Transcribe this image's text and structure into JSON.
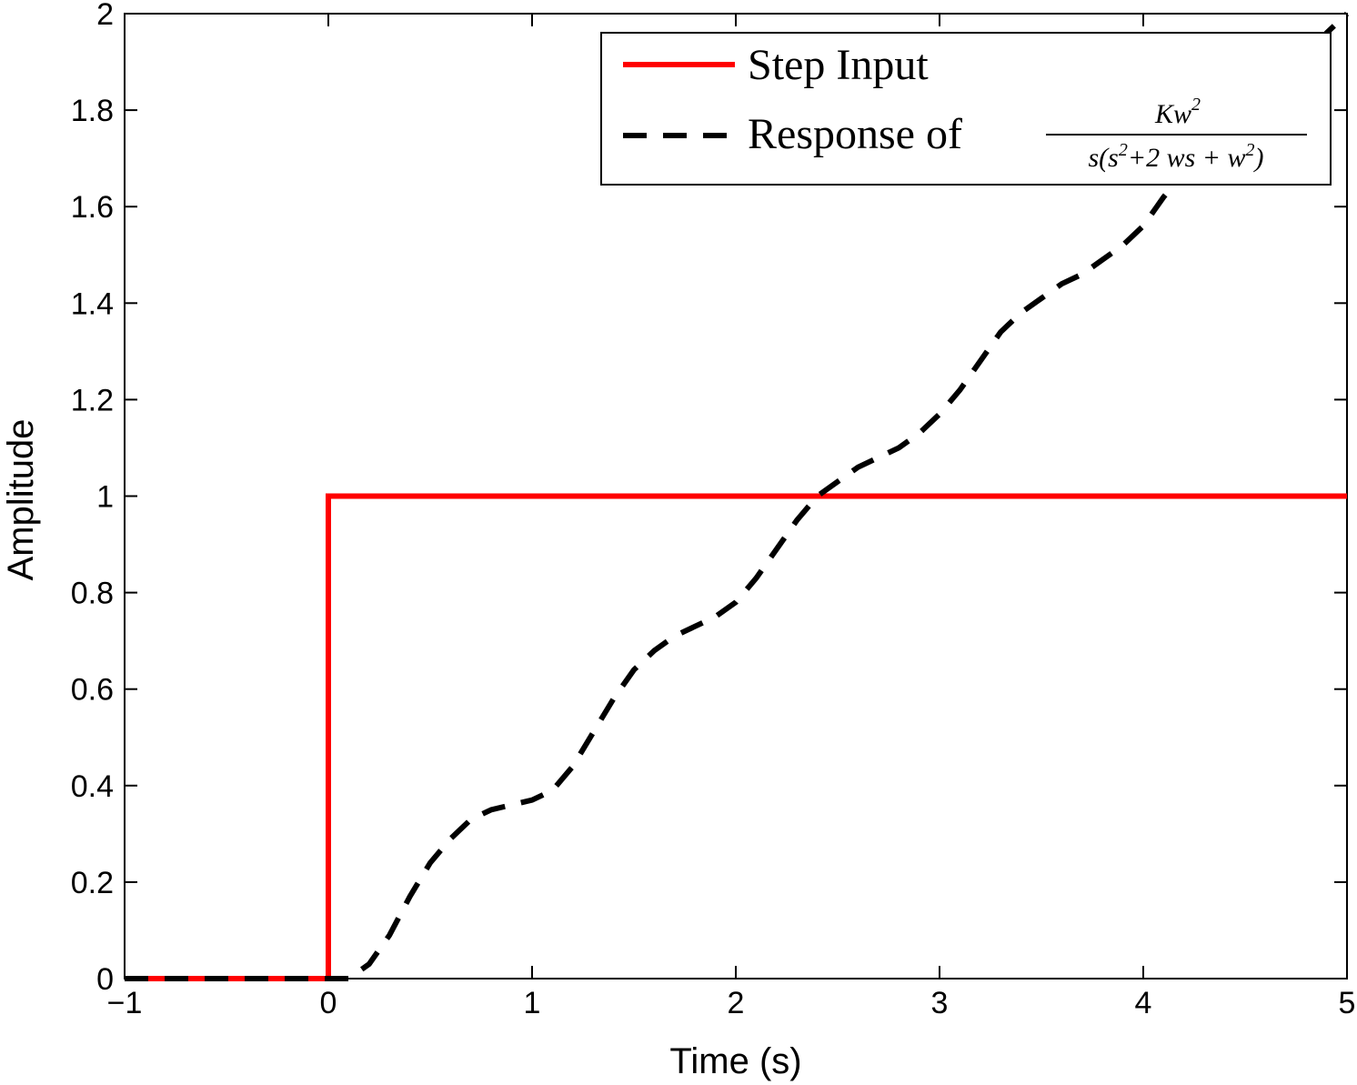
{
  "chart_data": {
    "type": "line",
    "xlabel": "Time (s)",
    "ylabel": "Amplitude",
    "xlim": [
      -1,
      5
    ],
    "ylim": [
      0,
      2
    ],
    "xticks": [
      "−1",
      "0",
      "1",
      "2",
      "3",
      "4",
      "5"
    ],
    "yticks": [
      "0",
      "0.2",
      "0.4",
      "0.6",
      "0.8",
      "1",
      "1.2",
      "1.4",
      "1.6",
      "1.8",
      "2"
    ],
    "grid": false,
    "legend_position": "top-right",
    "legend": {
      "step_label": "Step Input",
      "response_prefix": "Response of",
      "fraction_numerator": "Kw2",
      "fraction_denominator": "s(s2+2ws+w2)"
    },
    "series": [
      {
        "name": "Step Input",
        "color": "#ff0000",
        "style": "solid",
        "x": [
          -1,
          0,
          0,
          5
        ],
        "y": [
          0,
          0,
          1,
          1
        ]
      },
      {
        "name": "Response",
        "color": "#000000",
        "style": "dashed",
        "x": [
          -1,
          0,
          0.1,
          0.2,
          0.3,
          0.4,
          0.5,
          0.6,
          0.7,
          0.8,
          0.9,
          1.0,
          1.1,
          1.2,
          1.3,
          1.4,
          1.5,
          1.6,
          1.7,
          1.8,
          1.9,
          2.0,
          2.1,
          2.2,
          2.3,
          2.4,
          2.5,
          2.6,
          2.7,
          2.8,
          2.9,
          3.0,
          3.1,
          3.2,
          3.3,
          3.4,
          3.5,
          3.6,
          3.7,
          3.8,
          3.9,
          4.0,
          4.1,
          4.2,
          4.3,
          4.4,
          4.5,
          4.6,
          4.7,
          4.8,
          4.9,
          5.0
        ],
        "y": [
          0,
          0,
          0.0,
          0.03,
          0.09,
          0.17,
          0.24,
          0.29,
          0.33,
          0.35,
          0.36,
          0.37,
          0.39,
          0.44,
          0.51,
          0.58,
          0.64,
          0.68,
          0.71,
          0.73,
          0.75,
          0.78,
          0.83,
          0.89,
          0.95,
          1.0,
          1.03,
          1.06,
          1.08,
          1.1,
          1.13,
          1.17,
          1.22,
          1.28,
          1.34,
          1.38,
          1.41,
          1.44,
          1.46,
          1.49,
          1.52,
          1.56,
          1.62,
          1.67,
          1.72,
          1.77,
          1.8,
          1.84,
          1.87,
          1.91,
          1.96,
          2.0
        ]
      }
    ]
  }
}
